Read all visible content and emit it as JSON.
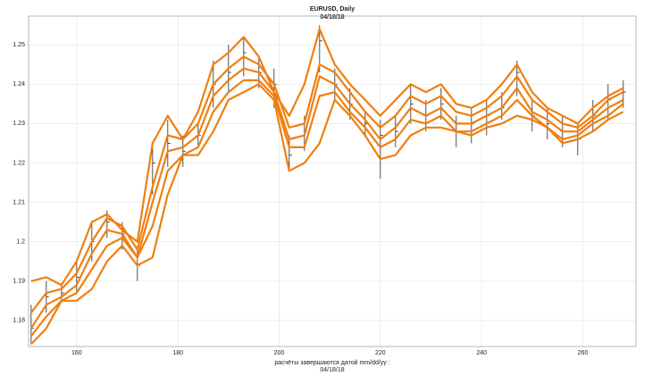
{
  "chart_data": {
    "type": "ohlc",
    "title": "EURUSD,          Daily",
    "subtitle": "04/18/18",
    "xlabel": "расчёты  завершаются  датой   mm/dd/yy :",
    "xlabel2": "04/18/18",
    "xlim": [
      150.5,
      270.5
    ],
    "ylim": [
      1.1734,
      1.2573
    ],
    "xticks": [
      160,
      180,
      200,
      220,
      240,
      260
    ],
    "yticks": [
      1.18,
      1.19,
      1.2,
      1.21,
      1.22,
      1.23,
      1.24,
      1.25
    ],
    "grid": true,
    "bar_color": "#222222",
    "x": [
      151,
      154,
      157,
      160,
      163,
      166,
      169,
      172,
      175,
      178,
      181,
      184,
      187,
      190,
      193,
      196,
      199,
      202,
      205,
      208,
      211,
      214,
      217,
      220,
      223,
      226,
      229,
      232,
      235,
      238,
      241,
      244,
      247,
      250,
      253,
      256,
      259,
      262,
      265,
      268
    ],
    "high": [
      1.184,
      1.19,
      1.189,
      1.195,
      1.205,
      1.208,
      1.205,
      1.199,
      1.225,
      1.231,
      1.227,
      1.23,
      1.246,
      1.25,
      1.252,
      1.247,
      1.244,
      1.227,
      1.232,
      1.255,
      1.244,
      1.239,
      1.233,
      1.231,
      1.232,
      1.24,
      1.236,
      1.239,
      1.232,
      1.234,
      1.236,
      1.238,
      1.246,
      1.236,
      1.234,
      1.232,
      1.23,
      1.236,
      1.24,
      1.241
    ],
    "low": [
      1.174,
      1.182,
      1.185,
      1.187,
      1.195,
      1.201,
      1.198,
      1.19,
      1.212,
      1.219,
      1.219,
      1.224,
      1.234,
      1.238,
      1.242,
      1.239,
      1.234,
      1.218,
      1.223,
      1.243,
      1.236,
      1.231,
      1.227,
      1.216,
      1.224,
      1.23,
      1.228,
      1.231,
      1.224,
      1.225,
      1.227,
      1.231,
      1.237,
      1.228,
      1.226,
      1.224,
      1.222,
      1.228,
      1.231,
      1.234
    ],
    "close": [
      1.178,
      1.186,
      1.187,
      1.191,
      1.2,
      1.205,
      1.202,
      1.194,
      1.22,
      1.225,
      1.223,
      1.227,
      1.24,
      1.243,
      1.248,
      1.243,
      1.24,
      1.222,
      1.228,
      1.251,
      1.24,
      1.235,
      1.23,
      1.227,
      1.228,
      1.235,
      1.232,
      1.235,
      1.228,
      1.23,
      1.232,
      1.234,
      1.243,
      1.232,
      1.23,
      1.228,
      1.226,
      1.232,
      1.236,
      1.238
    ],
    "lines": [
      {
        "color": "#f07f0f",
        "values": [
          1.19,
          1.191,
          1.189,
          1.195,
          1.205,
          1.207,
          1.203,
          1.2,
          1.225,
          1.232,
          1.226,
          1.233,
          1.245,
          1.248,
          1.252,
          1.247,
          1.238,
          1.232,
          1.24,
          1.254,
          1.245,
          1.24,
          1.236,
          1.232,
          1.236,
          1.24,
          1.238,
          1.24,
          1.235,
          1.234,
          1.236,
          1.24,
          1.245,
          1.238,
          1.234,
          1.232,
          1.23,
          1.234,
          1.237,
          1.239
        ]
      },
      {
        "color": "#f07f0f",
        "values": [
          1.182,
          1.187,
          1.188,
          1.192,
          1.2,
          1.206,
          1.204,
          1.198,
          1.214,
          1.227,
          1.226,
          1.23,
          1.24,
          1.244,
          1.247,
          1.245,
          1.24,
          1.229,
          1.23,
          1.245,
          1.243,
          1.238,
          1.233,
          1.229,
          1.232,
          1.237,
          1.235,
          1.237,
          1.233,
          1.232,
          1.234,
          1.237,
          1.242,
          1.236,
          1.233,
          1.23,
          1.229,
          1.232,
          1.236,
          1.238
        ]
      },
      {
        "color": "#f07f0f",
        "values": [
          1.178,
          1.184,
          1.186,
          1.189,
          1.197,
          1.203,
          1.202,
          1.196,
          1.21,
          1.223,
          1.224,
          1.227,
          1.237,
          1.241,
          1.244,
          1.243,
          1.238,
          1.226,
          1.227,
          1.242,
          1.24,
          1.235,
          1.231,
          1.226,
          1.229,
          1.234,
          1.232,
          1.234,
          1.23,
          1.23,
          1.232,
          1.234,
          1.239,
          1.233,
          1.231,
          1.228,
          1.228,
          1.231,
          1.234,
          1.236
        ]
      },
      {
        "color": "#f07f0f",
        "values": [
          1.176,
          1.181,
          1.185,
          1.187,
          1.193,
          1.199,
          1.201,
          1.196,
          1.204,
          1.218,
          1.222,
          1.224,
          1.233,
          1.238,
          1.241,
          1.241,
          1.237,
          1.224,
          1.224,
          1.237,
          1.238,
          1.233,
          1.229,
          1.224,
          1.226,
          1.231,
          1.23,
          1.232,
          1.228,
          1.228,
          1.23,
          1.232,
          1.236,
          1.232,
          1.229,
          1.226,
          1.227,
          1.23,
          1.232,
          1.235
        ]
      },
      {
        "color": "#f07f0f",
        "values": [
          1.174,
          1.178,
          1.185,
          1.185,
          1.188,
          1.195,
          1.199,
          1.194,
          1.196,
          1.212,
          1.222,
          1.222,
          1.228,
          1.236,
          1.238,
          1.24,
          1.236,
          1.218,
          1.22,
          1.225,
          1.236,
          1.232,
          1.227,
          1.221,
          1.222,
          1.227,
          1.229,
          1.229,
          1.228,
          1.227,
          1.229,
          1.23,
          1.232,
          1.231,
          1.229,
          1.225,
          1.226,
          1.228,
          1.231,
          1.233
        ]
      }
    ]
  }
}
